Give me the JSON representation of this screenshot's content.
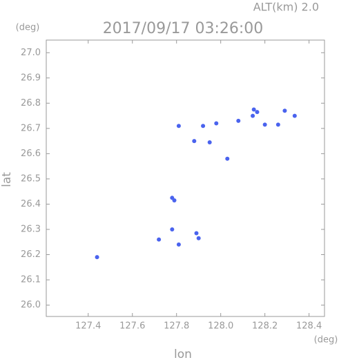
{
  "chart_data": {
    "type": "scatter",
    "title": "2017/09/17 03:26:00",
    "subtitle": "ALT(km) 2.0",
    "x_label": "lon",
    "y_label": "lat",
    "x_unit": "(deg)",
    "y_unit": "(deg)",
    "color": "#4a63ee",
    "x": [
      127.81,
      127.88,
      127.92,
      127.95,
      127.98,
      128.03,
      128.08,
      128.15,
      128.165,
      128.145,
      128.2,
      128.26,
      128.29,
      128.335,
      127.78,
      127.79,
      127.78,
      127.72,
      127.81,
      127.89,
      127.9,
      127.44
    ],
    "values": [
      26.71,
      26.65,
      26.71,
      26.645,
      26.72,
      26.58,
      26.73,
      26.775,
      26.765,
      26.75,
      26.715,
      26.715,
      26.77,
      26.75,
      26.425,
      26.415,
      26.3,
      26.26,
      26.24,
      26.285,
      26.265,
      26.19
    ],
    "xlim": [
      127.21,
      128.47
    ],
    "ylim": [
      25.955,
      27.05
    ],
    "xticks": [
      127.4,
      127.6,
      127.8,
      {
        "value": 128,
        "label": "128.0"
      },
      128.2,
      128.4
    ],
    "yticks": [
      {
        "value": 26,
        "label": "26.0"
      },
      26.1,
      26.2,
      26.3,
      26.4,
      26.5,
      26.6,
      26.7,
      26.8,
      26.9,
      {
        "value": 27,
        "label": "27.0"
      }
    ]
  }
}
